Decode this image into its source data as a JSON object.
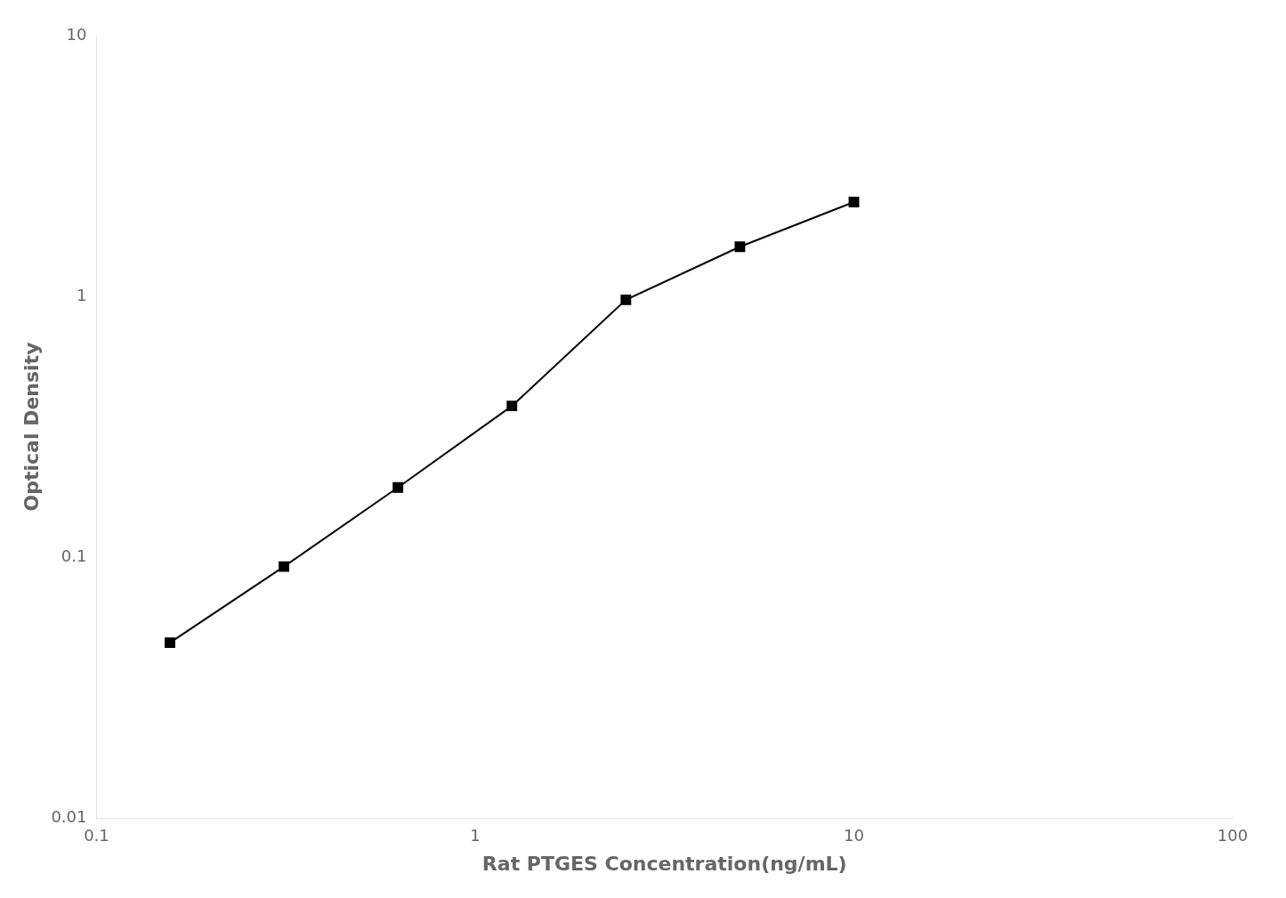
{
  "chart_data": {
    "type": "line",
    "x": [
      0.15625,
      0.3125,
      0.625,
      1.25,
      2.5,
      5.0,
      10.0
    ],
    "values": [
      0.047,
      0.092,
      0.185,
      0.38,
      0.97,
      1.55,
      2.3
    ],
    "xlabel": "Rat PTGES Concentration(ng/mL)",
    "ylabel": "Optical Density",
    "xlim": [
      0.1,
      100
    ],
    "ylim": [
      0.01,
      10
    ],
    "xticks": [
      0.1,
      1,
      10,
      100
    ],
    "yticks": [
      0.01,
      0.1,
      1,
      10
    ],
    "log": true,
    "grid": false,
    "color": "#000000",
    "marker": "square",
    "line_style": "solid"
  }
}
